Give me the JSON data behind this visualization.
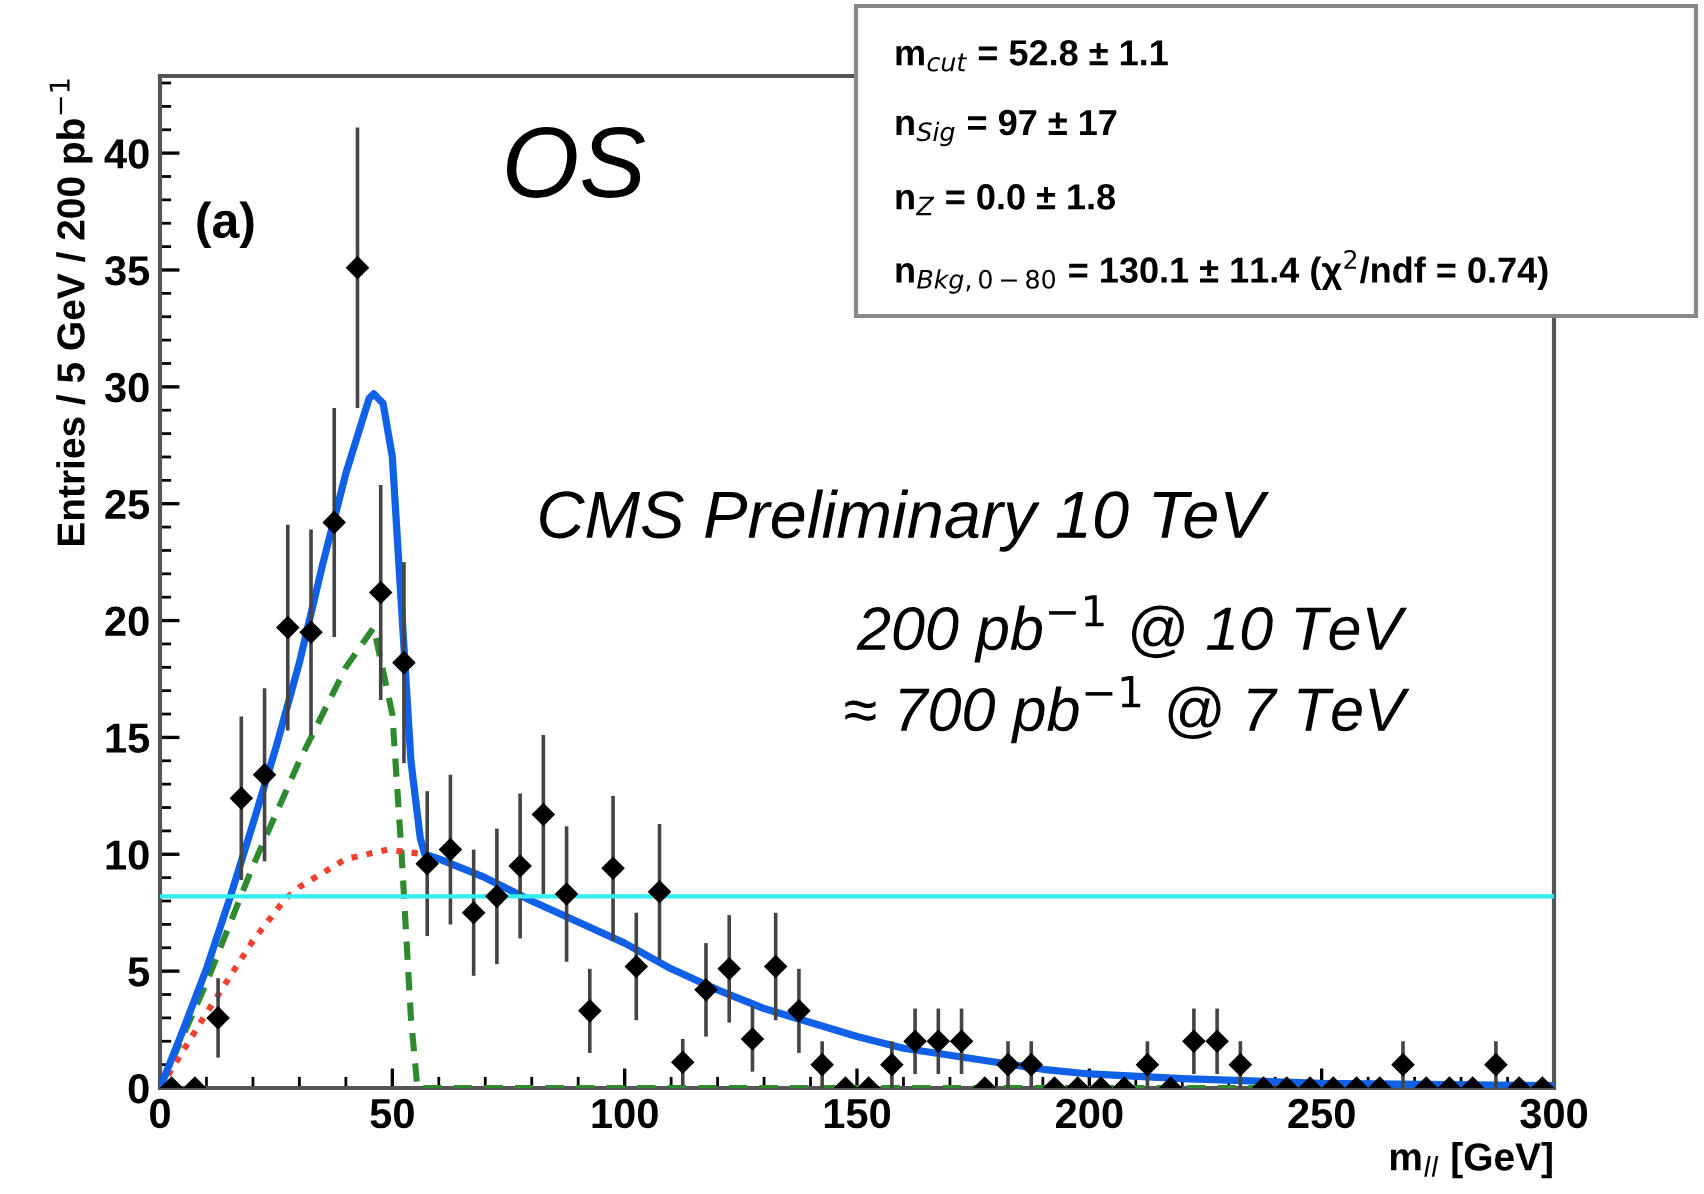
{
  "chart_data": {
    "type": "scatter",
    "ylabel": "Entries / 5 GeV / 200 pb$^{−1}$",
    "xlabel": "m$_{ll}$ [GeV]",
    "annotations": [
      "(a)",
      "OS",
      "CMS Preliminary 10 TeV",
      "200 pb$^{−1}$ @ 10 TeV",
      "≈ 700 pb$^{−1}$ @ 7 TeV",
      "m$_{cut}$ = 52.8 ± 1.1",
      "n$_{Sig}$ = 97 ± 17",
      "n$_{Z}$ = 0.0 ± 1.8",
      "n$_{Bkg,0−80}$ = 130.1 ± 11.4 (χ$^{2}$/ndf = 0.74)"
    ],
    "xlim": [
      0,
      300
    ],
    "xticks": [
      0,
      50,
      100,
      150,
      200,
      250,
      300
    ],
    "ylim": [
      0,
      43.3
    ],
    "yticks": [
      0,
      5,
      10,
      15,
      20,
      25,
      30,
      35,
      40
    ],
    "grid": false,
    "ref_lines": [
      {
        "axis": "y",
        "value": 8.2,
        "color": "#33eef0"
      }
    ],
    "series": [
      {
        "type": "line",
        "color": "#2f8a2f",
        "line_style": "dashed",
        "marker": "none",
        "x": [
          0,
          10,
          20,
          30,
          40,
          46,
          50,
          52,
          54,
          55.4,
          300
        ],
        "values": [
          0,
          4.5,
          9.5,
          14,
          18,
          19.7,
          16,
          10,
          3,
          0,
          0
        ]
      },
      {
        "type": "line",
        "color": "#f04030",
        "line_style": "dotted",
        "marker": "none",
        "x": [
          0,
          10,
          20,
          27,
          30,
          40,
          49,
          57
        ],
        "values": [
          0,
          3.2,
          6.3,
          8.1,
          8.6,
          9.8,
          10.2,
          10.0
        ]
      },
      {
        "type": "line",
        "color": "#1060e8",
        "line_style": "solid",
        "marker": "none",
        "x": [
          0,
          5,
          10,
          15,
          20,
          25,
          30,
          35,
          40,
          45,
          46,
          48,
          50,
          52,
          54,
          56,
          57,
          60,
          70,
          80,
          90,
          100,
          110,
          120,
          130,
          140,
          150,
          160,
          170,
          180,
          190,
          200,
          220,
          250,
          300
        ],
        "values": [
          0,
          2.5,
          5.1,
          8.1,
          11.3,
          14.6,
          18.2,
          22.4,
          26.3,
          29.5,
          29.7,
          29.3,
          27,
          20.5,
          14,
          10.7,
          10,
          9.8,
          9.0,
          8.0,
          7.1,
          6.2,
          5.1,
          4.2,
          3.4,
          2.8,
          2.2,
          1.7,
          1.4,
          1.1,
          0.8,
          0.6,
          0.4,
          0.2,
          0.1
        ]
      },
      {
        "color": "#000000",
        "marker": "diamond",
        "x": [
          2.5,
          7.5,
          12.5,
          17.5,
          22.5,
          27.5,
          32.5,
          37.5,
          42.5,
          47.5,
          52.5,
          57.5,
          62.5,
          67.5,
          72.5,
          77.5,
          82.5,
          87.5,
          92.5,
          97.5,
          102.5,
          107.5,
          112.5,
          117.5,
          122.5,
          127.5,
          132.5,
          137.5,
          142.5,
          147.5,
          152.5,
          157.5,
          162.5,
          167.5,
          172.5,
          177.5,
          182.5,
          187.5,
          192.5,
          197.5,
          202.5,
          207.5,
          212.5,
          217.5,
          222.5,
          227.5,
          232.5,
          237.5,
          242.5,
          247.5,
          252.5,
          257.5,
          262.5,
          267.5,
          272.5,
          277.5,
          282.5,
          287.5,
          292.5,
          297.5
        ],
        "values": [
          0,
          0,
          3.0,
          12.4,
          13.4,
          19.7,
          19.5,
          24.2,
          35.1,
          21.2,
          18.2,
          9.6,
          10.2,
          7.5,
          8.2,
          9.5,
          11.7,
          8.3,
          3.3,
          9.4,
          5.2,
          8.4,
          1.1,
          4.2,
          5.1,
          2.1,
          5.2,
          3.3,
          1.0,
          0,
          0,
          1,
          2,
          2,
          2,
          0,
          1,
          1,
          0,
          0,
          0,
          0,
          1,
          0,
          2,
          2,
          1,
          0,
          0,
          0,
          0,
          0,
          0,
          1,
          0,
          0,
          0,
          1,
          0,
          0
        ],
        "errors": [
          null,
          null,
          1.7,
          3.5,
          3.7,
          4.4,
          4.4,
          4.9,
          6.0,
          4.6,
          4.3,
          3.1,
          3.2,
          2.7,
          2.9,
          3.1,
          3.4,
          2.9,
          1.8,
          3.1,
          2.3,
          2.9,
          1.0,
          2.0,
          2.3,
          1.4,
          2.3,
          1.8,
          1.0,
          null,
          null,
          1.0,
          1.4,
          1.4,
          1.4,
          null,
          1.0,
          1.0,
          null,
          null,
          null,
          null,
          1.0,
          null,
          1.4,
          1.4,
          1.0,
          null,
          null,
          null,
          null,
          null,
          null,
          1.0,
          null,
          null,
          null,
          1.0,
          null,
          null
        ]
      }
    ]
  }
}
